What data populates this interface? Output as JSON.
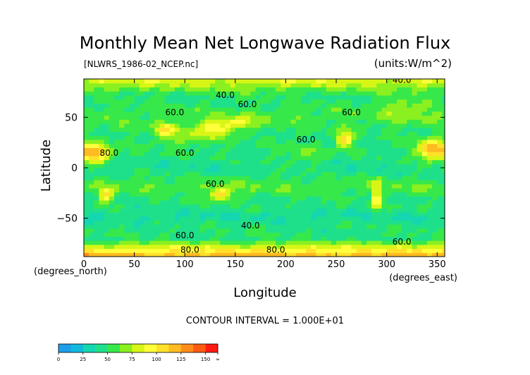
{
  "chart_data": {
    "type": "heatmap",
    "title": "Monthly Mean Net Longwave Radiation Flux",
    "file_label": "[NLWRS_1986-02_NCEP.nc]",
    "units_label": "(units:W/m^2)",
    "xlabel": "Longitude",
    "ylabel": "Latitude",
    "x_unit_label": "(degrees_east)",
    "y_unit_label": "(degrees_north)",
    "xlim": [
      0,
      357.5
    ],
    "ylim": [
      -88,
      88
    ],
    "x_ticks": [
      0,
      50,
      100,
      150,
      200,
      250,
      300,
      350
    ],
    "y_ticks": [
      50,
      0,
      -50
    ],
    "contour_interval_text": "CONTOUR INTERVAL = 1.000E+01",
    "colorbar": {
      "levels": [
        0,
        12.5,
        25,
        37.5,
        50,
        62.5,
        75,
        87.5,
        100,
        112.5,
        125,
        137.5,
        150,
        175
      ],
      "tick_labels": [
        "0",
        "25",
        "50",
        "75",
        "100",
        "125",
        "150",
        "∞"
      ],
      "colors": [
        "#1e9ee8",
        "#12b9de",
        "#14d6b0",
        "#1fe08a",
        "#37e84a",
        "#8af020",
        "#d8f616",
        "#ffff3a",
        "#ffe02a",
        "#ffbb22",
        "#ff8c1a",
        "#ff5a14",
        "#ff1a12"
      ]
    },
    "contour_labels": [
      {
        "text": "40.0",
        "lon": 140,
        "lat": 69
      },
      {
        "text": "60.0",
        "lon": 162,
        "lat": 60
      },
      {
        "text": "60.0",
        "lon": 90,
        "lat": 52
      },
      {
        "text": "60.0",
        "lon": 265,
        "lat": 52
      },
      {
        "text": "60.0",
        "lon": 220,
        "lat": 25
      },
      {
        "text": "80.0",
        "lon": 25,
        "lat": 12
      },
      {
        "text": "60.0",
        "lon": 100,
        "lat": 12
      },
      {
        "text": "60.0",
        "lon": 130,
        "lat": -19
      },
      {
        "text": "40.0",
        "lon": 165,
        "lat": -60
      },
      {
        "text": "60.0",
        "lon": 100,
        "lat": -70
      },
      {
        "text": "80.0",
        "lon": 105,
        "lat": -84
      },
      {
        "text": "80.0",
        "lon": 190,
        "lat": -84
      },
      {
        "text": "60.0",
        "lon": 315,
        "lat": -76
      },
      {
        "text": "40.0",
        "lon": 315,
        "lat": 84
      }
    ]
  }
}
